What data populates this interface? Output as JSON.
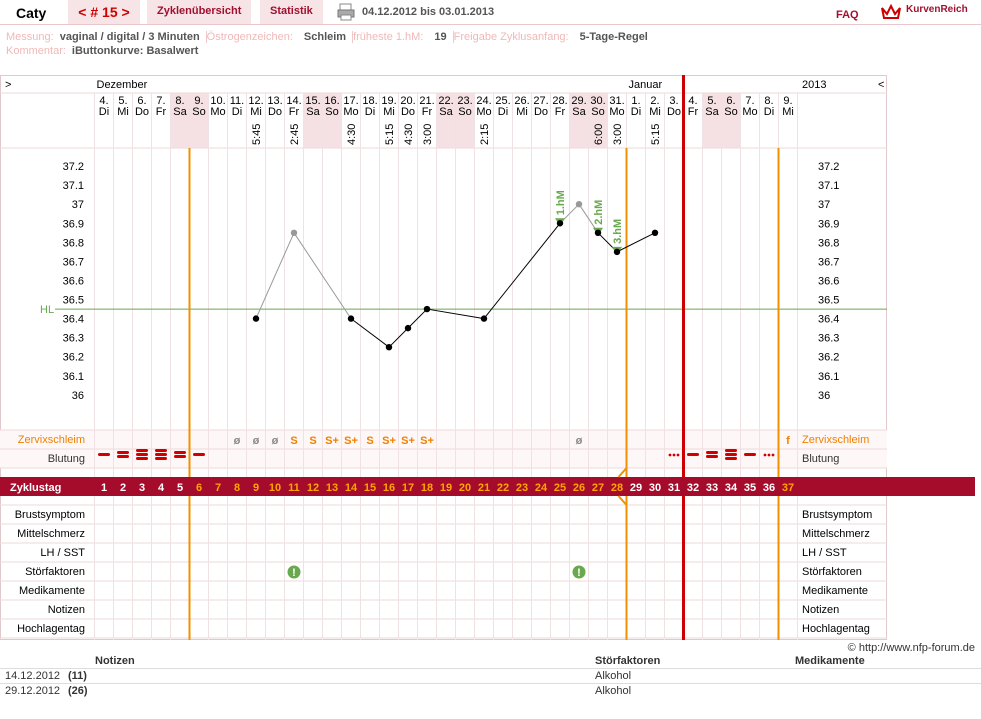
{
  "header": {
    "user": "Caty",
    "cycle": "< # 15 >",
    "tabs": [
      "Zyklenübersicht",
      "Statistik"
    ],
    "date_range": "04.12.2012 bis 03.01.2013",
    "faq": "FAQ",
    "logo": "KurvenReich"
  },
  "info": {
    "items": [
      {
        "label": "Messung:",
        "value": "vaginal / digital / 3 Minuten"
      },
      {
        "label": "Östrogenzeichen:",
        "value": "Schleim"
      },
      {
        "label": "früheste 1.hM:",
        "value": "19"
      },
      {
        "label": "Freigabe Zyklusanfang:",
        "value": "5-Tage-Regel"
      }
    ],
    "comment_label": "Kommentar:",
    "comment": "iButtonkurve: Basalwert"
  },
  "chart_data": {
    "type": "line",
    "nav_left": ">",
    "nav_right": "<",
    "year": "2013",
    "months": [
      "Dezember",
      null,
      null,
      null,
      null,
      null,
      null,
      null,
      null,
      null,
      null,
      null,
      null,
      null,
      null,
      null,
      null,
      null,
      null,
      null,
      null,
      null,
      null,
      null,
      null,
      null,
      null,
      null,
      "Januar",
      null,
      null,
      null,
      null,
      null,
      null,
      null,
      null
    ],
    "days": [
      "4.",
      "5.",
      "6.",
      "7.",
      "8.",
      "9.",
      "10.",
      "11.",
      "12.",
      "13.",
      "14.",
      "15.",
      "16.",
      "17.",
      "18.",
      "19.",
      "20.",
      "21.",
      "22.",
      "23.",
      "24.",
      "25.",
      "26.",
      "27.",
      "28.",
      "29.",
      "30.",
      "31.",
      "1.",
      "2.",
      "3.",
      "4.",
      "5.",
      "6.",
      "7.",
      "8.",
      "9."
    ],
    "weekdays": [
      "Di",
      "Mi",
      "Do",
      "Fr",
      "Sa",
      "So",
      "Mo",
      "Di",
      "Mi",
      "Do",
      "Fr",
      "Sa",
      "So",
      "Mo",
      "Di",
      "Mi",
      "Do",
      "Fr",
      "Sa",
      "So",
      "Mo",
      "Di",
      "Mi",
      "Do",
      "Fr",
      "Sa",
      "So",
      "Mo",
      "Di",
      "Mi",
      "Do",
      "Fr",
      "Sa",
      "So",
      "Mo",
      "Di",
      "Mi"
    ],
    "times": [
      null,
      null,
      null,
      null,
      null,
      null,
      null,
      null,
      "5:45",
      null,
      "2:45",
      null,
      null,
      "4:30",
      null,
      "5:15",
      "4:30",
      "3:00",
      null,
      null,
      "2:15",
      null,
      null,
      null,
      null,
      null,
      "6:00",
      "3:00",
      null,
      "5:15",
      null,
      null,
      null,
      null,
      null,
      null,
      null
    ],
    "temps": [
      null,
      null,
      null,
      null,
      null,
      null,
      null,
      null,
      36.4,
      null,
      36.85,
      null,
      null,
      36.4,
      null,
      36.25,
      36.35,
      36.45,
      null,
      null,
      36.4,
      null,
      null,
      null,
      36.9,
      37.0,
      36.85,
      36.75,
      null,
      36.85,
      null,
      null,
      null,
      null,
      null,
      null,
      null
    ],
    "point_colors": [
      null,
      null,
      null,
      null,
      null,
      null,
      null,
      null,
      "#000000",
      null,
      "#999999",
      null,
      null,
      "#000000",
      null,
      "#000000",
      "#000000",
      "#000000",
      null,
      null,
      "#000000",
      null,
      null,
      null,
      "#000000",
      "#999999",
      "#000000",
      "#000000",
      null,
      "#000000",
      null,
      null,
      null,
      null,
      null,
      null,
      null
    ],
    "annotations": [
      null,
      null,
      null,
      null,
      null,
      null,
      null,
      null,
      null,
      null,
      null,
      null,
      null,
      null,
      null,
      null,
      null,
      null,
      null,
      null,
      null,
      null,
      null,
      null,
      "1.hM",
      null,
      "2.hM",
      "3.hM",
      null,
      null,
      null,
      null,
      null,
      null,
      null,
      null,
      null
    ],
    "ylim": [
      35.8,
      37.3
    ],
    "yticks": [
      36,
      36.1,
      36.2,
      36.3,
      36.4,
      36.5,
      36.6,
      36.7,
      36.8,
      36.9,
      37,
      37.1,
      37.2
    ],
    "hl": 36.45,
    "hl_label": "HL",
    "hl_color": "#6aa84f",
    "cervix_label": "Zervixschleim",
    "cervix": [
      null,
      null,
      null,
      null,
      null,
      null,
      null,
      "ø",
      "ø",
      "ø",
      "S",
      "S",
      "S+",
      "S+",
      "S",
      "S+",
      "S+",
      "S+",
      null,
      null,
      null,
      null,
      null,
      null,
      null,
      "ø",
      null,
      null,
      null,
      null,
      null,
      null,
      null,
      null,
      null,
      null,
      "f"
    ],
    "bleeding_label": "Blutung",
    "bleeding": [
      1,
      2,
      3,
      3,
      2,
      1,
      null,
      null,
      null,
      null,
      null,
      null,
      null,
      null,
      null,
      null,
      null,
      null,
      null,
      null,
      null,
      null,
      null,
      null,
      null,
      null,
      null,
      null,
      null,
      null,
      0,
      1,
      2,
      3,
      1,
      0,
      null
    ],
    "cycle_label": "Zyklustag",
    "cycle_days": [
      1,
      2,
      3,
      4,
      5,
      6,
      7,
      8,
      9,
      10,
      11,
      12,
      13,
      14,
      15,
      16,
      17,
      18,
      19,
      20,
      21,
      22,
      23,
      24,
      25,
      26,
      27,
      28,
      29,
      30,
      31,
      32,
      33,
      34,
      35,
      36,
      37
    ],
    "rows": [
      "Brustsymptom",
      "Mittelschmerz",
      "LH / SST",
      "Störfaktoren",
      "Medikamente",
      "Notizen",
      "Hochlagentag"
    ],
    "disturbances": [
      null,
      null,
      null,
      null,
      null,
      null,
      null,
      null,
      null,
      null,
      "!",
      null,
      null,
      null,
      null,
      null,
      null,
      null,
      null,
      null,
      null,
      null,
      null,
      null,
      null,
      "!",
      null,
      null,
      null,
      null,
      null,
      null,
      null,
      null,
      null,
      null,
      null
    ]
  },
  "footer": {
    "copyright": "© http://www.nfp-forum.de",
    "columns": [
      "Notizen",
      "Störfaktoren",
      "Medikamente"
    ],
    "rows": [
      [
        "14.12.2012",
        "(11)",
        "Alkohol"
      ],
      [
        "29.12.2012",
        "(26)",
        "Alkohol"
      ]
    ]
  }
}
